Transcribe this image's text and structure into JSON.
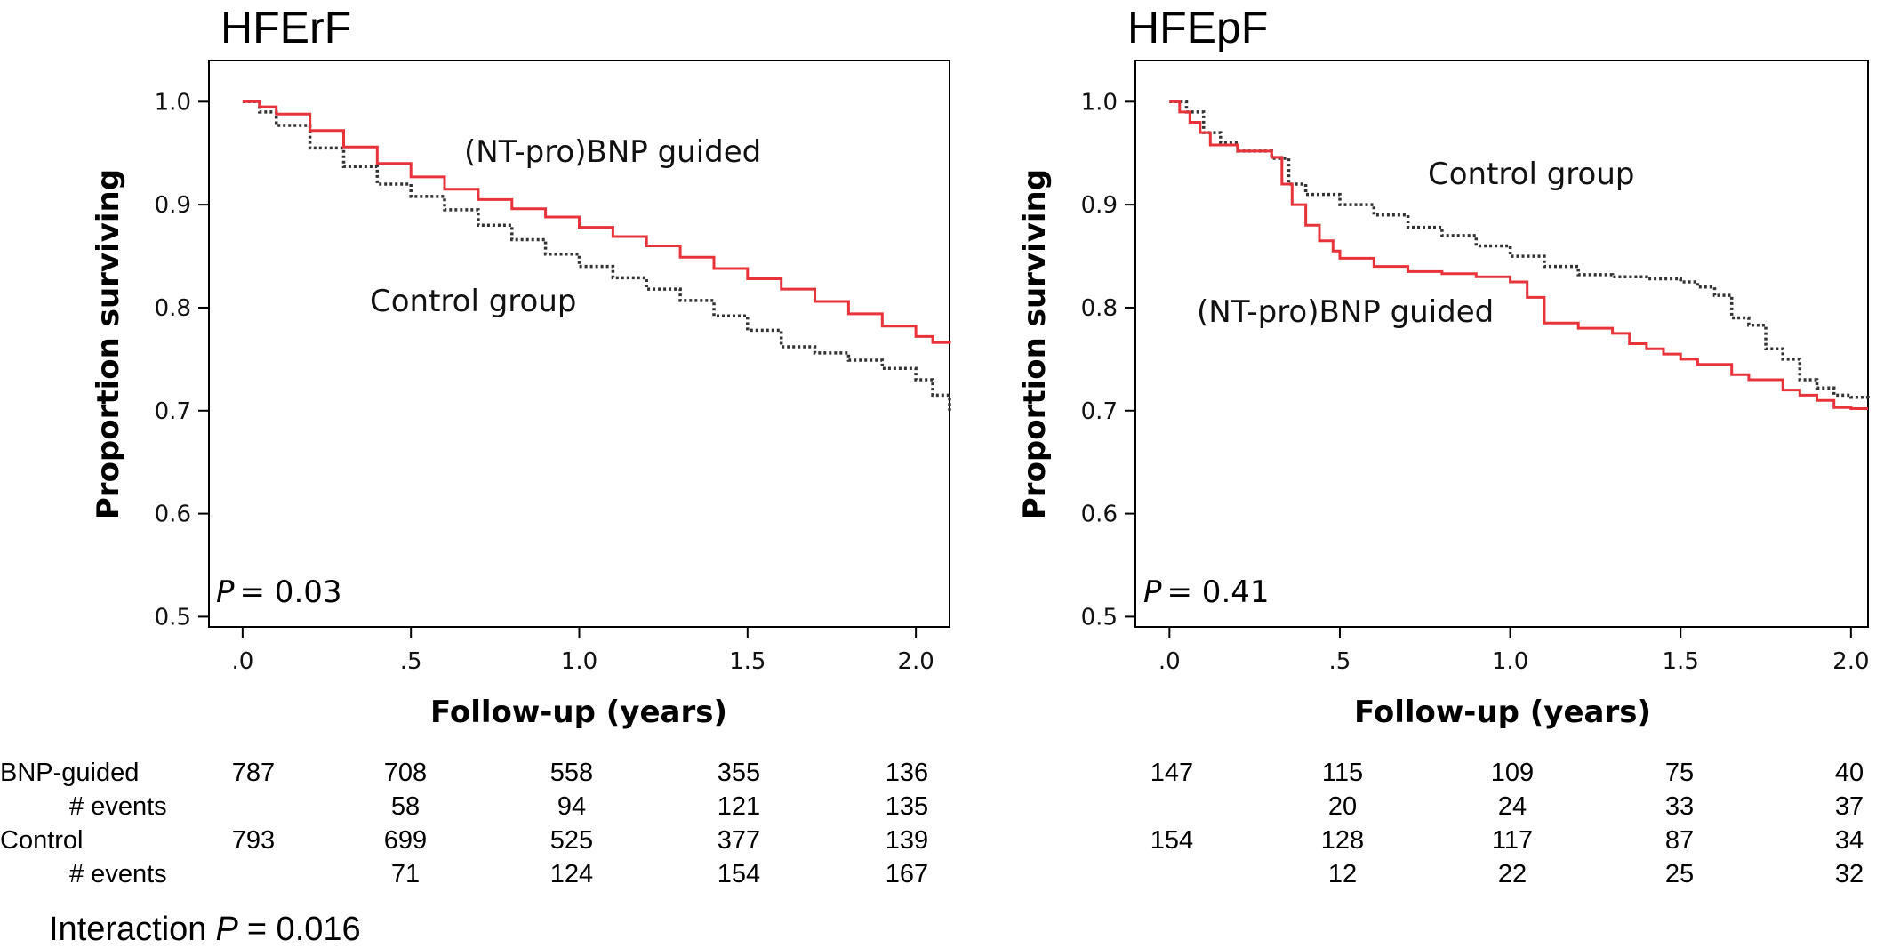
{
  "chart_data": [
    {
      "type": "line",
      "title": "HFErF",
      "xlabel": "Follow-up (years)",
      "ylabel": "Proportion surviving",
      "xlim": [
        -0.1,
        2.1
      ],
      "ylim": [
        0.49,
        1.04
      ],
      "xticks": [
        ".0",
        ".5",
        "1.0",
        "1.5",
        "2.0"
      ],
      "xtick_values": [
        0,
        0.5,
        1.0,
        1.5,
        2.0
      ],
      "yticks": [
        "0.5",
        "0.6",
        "0.7",
        "0.8",
        "0.9",
        "1.0"
      ],
      "ytick_values": [
        0.5,
        0.6,
        0.7,
        0.8,
        0.9,
        1.0
      ],
      "p_value_label": "P",
      "p_value_text": "= 0.03",
      "annotations": [
        "(NT-pro)BNP guided",
        "Control group"
      ],
      "series": [
        {
          "name": "(NT-pro)BNP guided",
          "color": "#e8333a",
          "style": "solid",
          "x": [
            0,
            0.05,
            0.1,
            0.2,
            0.3,
            0.4,
            0.5,
            0.6,
            0.7,
            0.8,
            0.9,
            1.0,
            1.1,
            1.2,
            1.3,
            1.4,
            1.5,
            1.6,
            1.7,
            1.8,
            1.9,
            2.0,
            2.05,
            2.1
          ],
          "y": [
            1.0,
            0.995,
            0.988,
            0.972,
            0.956,
            0.94,
            0.927,
            0.915,
            0.905,
            0.896,
            0.888,
            0.878,
            0.869,
            0.86,
            0.849,
            0.838,
            0.828,
            0.818,
            0.806,
            0.794,
            0.782,
            0.772,
            0.766,
            0.765
          ]
        },
        {
          "name": "Control group",
          "color": "#333333",
          "style": "dotted",
          "x": [
            0,
            0.05,
            0.1,
            0.2,
            0.3,
            0.4,
            0.5,
            0.6,
            0.7,
            0.8,
            0.9,
            1.0,
            1.1,
            1.2,
            1.3,
            1.4,
            1.5,
            1.6,
            1.7,
            1.8,
            1.9,
            2.0,
            2.05,
            2.1
          ],
          "y": [
            1.0,
            0.99,
            0.977,
            0.955,
            0.937,
            0.92,
            0.908,
            0.895,
            0.88,
            0.866,
            0.852,
            0.84,
            0.829,
            0.818,
            0.807,
            0.792,
            0.778,
            0.762,
            0.756,
            0.749,
            0.741,
            0.73,
            0.715,
            0.7
          ]
        }
      ],
      "risk_table": {
        "rows": [
          {
            "label": "BNP-guided",
            "values": [
              "787",
              "708",
              "558",
              "355",
              "136"
            ]
          },
          {
            "label": "# events",
            "values": [
              "",
              "58",
              "94",
              "121",
              "135"
            ]
          },
          {
            "label": "Control",
            "values": [
              "793",
              "699",
              "525",
              "377",
              "139"
            ]
          },
          {
            "label": "# events",
            "values": [
              "",
              "71",
              "124",
              "154",
              "167"
            ]
          }
        ]
      }
    },
    {
      "type": "line",
      "title": "HFEpF",
      "xlabel": "Follow-up (years)",
      "ylabel": "Proportion surviving",
      "xlim": [
        -0.1,
        2.05
      ],
      "ylim": [
        0.49,
        1.04
      ],
      "xticks": [
        ".0",
        ".5",
        "1.0",
        "1.5",
        "2.0"
      ],
      "xtick_values": [
        0,
        0.5,
        1.0,
        1.5,
        2.0
      ],
      "yticks": [
        "0.5",
        "0.6",
        "0.7",
        "0.8",
        "0.9",
        "1.0"
      ],
      "ytick_values": [
        0.5,
        0.6,
        0.7,
        0.8,
        0.9,
        1.0
      ],
      "p_value_label": "P",
      "p_value_text": "= 0.41",
      "annotations": [
        "Control group",
        "(NT-pro)BNP guided"
      ],
      "series": [
        {
          "name": "(NT-pro)BNP guided",
          "color": "#e8333a",
          "style": "solid",
          "x": [
            0,
            0.03,
            0.06,
            0.09,
            0.12,
            0.2,
            0.3,
            0.33,
            0.36,
            0.4,
            0.44,
            0.48,
            0.5,
            0.6,
            0.7,
            0.8,
            0.9,
            1.0,
            1.05,
            1.1,
            1.2,
            1.3,
            1.35,
            1.4,
            1.45,
            1.5,
            1.55,
            1.6,
            1.65,
            1.7,
            1.75,
            1.8,
            1.85,
            1.9,
            1.95,
            2.0,
            2.05
          ],
          "y": [
            1.0,
            0.99,
            0.98,
            0.97,
            0.958,
            0.952,
            0.946,
            0.92,
            0.9,
            0.88,
            0.865,
            0.855,
            0.848,
            0.84,
            0.835,
            0.833,
            0.83,
            0.825,
            0.81,
            0.785,
            0.78,
            0.775,
            0.765,
            0.76,
            0.755,
            0.75,
            0.745,
            0.745,
            0.735,
            0.73,
            0.73,
            0.72,
            0.715,
            0.71,
            0.703,
            0.702,
            0.702
          ]
        },
        {
          "name": "Control group",
          "color": "#333333",
          "style": "dotted",
          "x": [
            0,
            0.05,
            0.1,
            0.15,
            0.2,
            0.3,
            0.35,
            0.4,
            0.5,
            0.6,
            0.7,
            0.8,
            0.9,
            1.0,
            1.1,
            1.2,
            1.3,
            1.4,
            1.5,
            1.55,
            1.6,
            1.65,
            1.7,
            1.75,
            1.8,
            1.85,
            1.9,
            1.95,
            2.0,
            2.05
          ],
          "y": [
            1.0,
            0.99,
            0.97,
            0.96,
            0.952,
            0.945,
            0.92,
            0.91,
            0.9,
            0.89,
            0.878,
            0.87,
            0.86,
            0.85,
            0.84,
            0.832,
            0.83,
            0.828,
            0.825,
            0.82,
            0.812,
            0.79,
            0.783,
            0.76,
            0.75,
            0.73,
            0.722,
            0.715,
            0.713,
            0.712
          ]
        }
      ],
      "risk_table": {
        "rows": [
          {
            "label": "",
            "values": [
              "147",
              "115",
              "109",
              "75",
              "40"
            ]
          },
          {
            "label": "",
            "values": [
              "",
              "20",
              "24",
              "33",
              "37"
            ]
          },
          {
            "label": "",
            "values": [
              "154",
              "128",
              "117",
              "87",
              "34"
            ]
          },
          {
            "label": "",
            "values": [
              "",
              "12",
              "22",
              "25",
              "32"
            ]
          }
        ]
      }
    }
  ],
  "interaction": {
    "prefix": "Interaction",
    "symbol": "P",
    "value": "= 0.016"
  }
}
